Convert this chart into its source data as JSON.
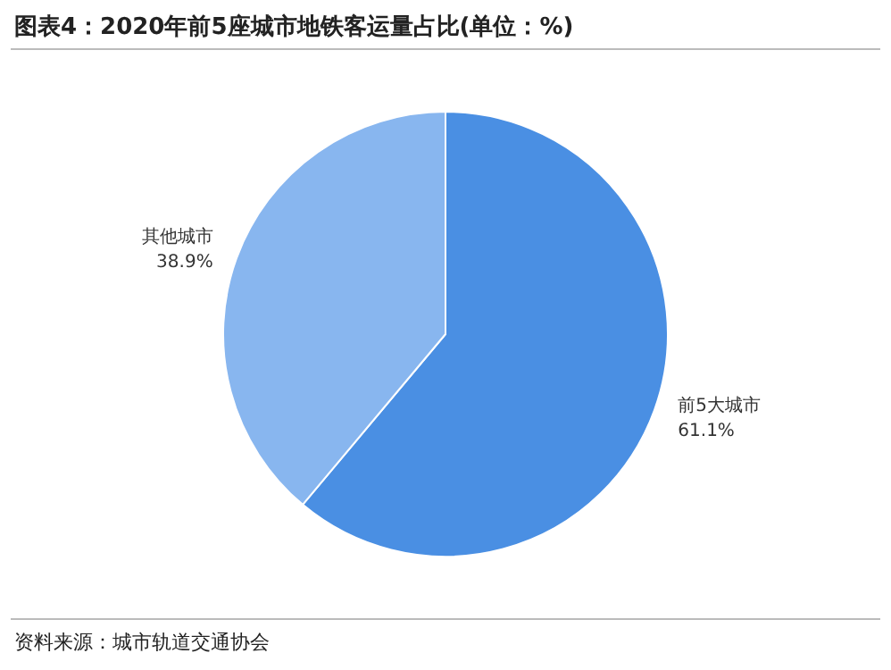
{
  "chart_data": {
    "type": "pie",
    "title": "图表4：2020年前5座城市地铁客运量占比(单位：%)",
    "categories": [
      "前5大城市",
      "其他城市"
    ],
    "values": [
      61.1,
      38.9
    ],
    "value_labels": [
      "61.1%",
      "38.9%"
    ],
    "colors": [
      "#4a8fe3",
      "#88b6ef"
    ],
    "annotations": [
      "资料来源：城市轨道交通协会"
    ]
  }
}
